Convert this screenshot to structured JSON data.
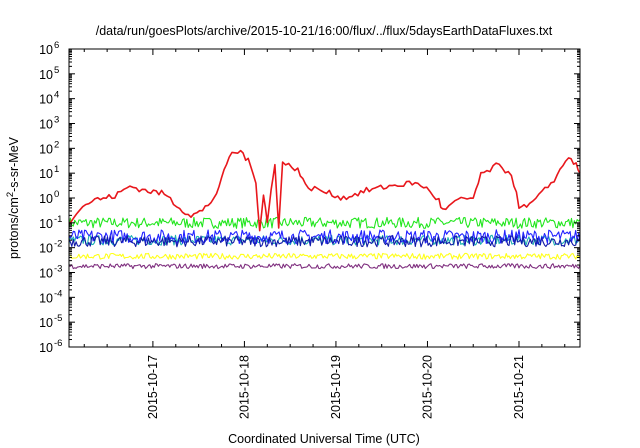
{
  "chart_data": {
    "type": "line",
    "title": "/data/run/goesPlots/archive/2015-10-21/16:00/flux/../flux/5daysEarthDataFluxes.txt",
    "xlabel": "Coordinated Universal Time (UTC)",
    "ylabel": "protons/cm²-s-sr-MeV",
    "yscale": "log",
    "ylim": [
      1e-06,
      1000000.0
    ],
    "xlim": [
      "2015-10-16T02:00",
      "2015-10-21T16:00"
    ],
    "y_ticks": [
      {
        "value": 1e-06,
        "base": "10",
        "exp": "-6"
      },
      {
        "value": 1e-05,
        "base": "10",
        "exp": "-5"
      },
      {
        "value": 0.0001,
        "base": "10",
        "exp": "-4"
      },
      {
        "value": 0.001,
        "base": "10",
        "exp": "-3"
      },
      {
        "value": 0.01,
        "base": "10",
        "exp": "-2"
      },
      {
        "value": 0.1,
        "base": "10",
        "exp": "-1"
      },
      {
        "value": 1,
        "base": "10",
        "exp": "0"
      },
      {
        "value": 10.0,
        "base": "10",
        "exp": "1"
      },
      {
        "value": 100.0,
        "base": "10",
        "exp": "2"
      },
      {
        "value": 1000.0,
        "base": "10",
        "exp": "3"
      },
      {
        "value": 10000.0,
        "base": "10",
        "exp": "4"
      },
      {
        "value": 100000.0,
        "base": "10",
        "exp": "5"
      },
      {
        "value": 1000000.0,
        "base": "10",
        "exp": "6"
      }
    ],
    "x_ticks": [
      {
        "t": "2015-10-17T00:00",
        "label": "2015-10-17"
      },
      {
        "t": "2015-10-18T00:00",
        "label": "2015-10-18"
      },
      {
        "t": "2015-10-19T00:00",
        "label": "2015-10-19"
      },
      {
        "t": "2015-10-20T00:00",
        "label": "2015-10-20"
      },
      {
        "t": "2015-10-21T00:00",
        "label": "2015-10-21"
      }
    ],
    "grid": false,
    "legend": "none",
    "series": [
      {
        "color": "#e8171c",
        "jitter": 0.12,
        "points": [
          [
            "2015-10-16T02:00",
            0.1
          ],
          [
            "2015-10-16T04:00",
            0.3
          ],
          [
            "2015-10-16T08:00",
            0.8
          ],
          [
            "2015-10-16T14:00",
            1.2
          ],
          [
            "2015-10-16T18:00",
            3.0
          ],
          [
            "2015-10-16T22:00",
            2.0
          ],
          [
            "2015-10-17T03:00",
            1.5
          ],
          [
            "2015-10-17T07:00",
            0.4
          ],
          [
            "2015-10-17T10:00",
            0.2
          ],
          [
            "2015-10-17T13:00",
            0.3
          ],
          [
            "2015-10-17T16:00",
            1.0
          ],
          [
            "2015-10-17T18:00",
            5.0
          ],
          [
            "2015-10-17T20:00",
            50
          ],
          [
            "2015-10-17T23:00",
            80
          ],
          [
            "2015-10-18T01:00",
            30
          ],
          [
            "2015-10-18T03:00",
            5.0
          ],
          [
            "2015-10-18T04:00",
            0.05
          ],
          [
            "2015-10-18T05:00",
            1.5
          ],
          [
            "2015-10-18T06:00",
            0.1
          ],
          [
            "2015-10-18T07:00",
            2.0
          ],
          [
            "2015-10-18T08:00",
            20
          ],
          [
            "2015-10-18T09:00",
            0.08
          ],
          [
            "2015-10-18T10:00",
            25
          ],
          [
            "2015-10-18T14:00",
            15
          ],
          [
            "2015-10-18T16:00",
            3.0
          ],
          [
            "2015-10-18T20:00",
            2.0
          ],
          [
            "2015-10-19T02:00",
            1.0
          ],
          [
            "2015-10-19T08:00",
            2.0
          ],
          [
            "2015-10-19T14:00",
            3.0
          ],
          [
            "2015-10-19T20:00",
            4.0
          ],
          [
            "2015-10-19T23:00",
            3.0
          ],
          [
            "2015-10-20T03:00",
            0.8
          ],
          [
            "2015-10-20T04:00",
            0.3
          ],
          [
            "2015-10-20T08:00",
            0.8
          ],
          [
            "2015-10-20T12:00",
            1.0
          ],
          [
            "2015-10-20T14:00",
            8.0
          ],
          [
            "2015-10-20T18:00",
            20
          ],
          [
            "2015-10-20T22:00",
            10
          ],
          [
            "2015-10-21T00:00",
            0.5
          ],
          [
            "2015-10-21T02:00",
            0.4
          ],
          [
            "2015-10-21T06:00",
            1.5
          ],
          [
            "2015-10-21T10:00",
            8.0
          ],
          [
            "2015-10-21T13:00",
            50
          ],
          [
            "2015-10-21T15:00",
            20
          ],
          [
            "2015-10-21T16:00",
            10
          ]
        ]
      },
      {
        "color": "#22e61e",
        "level": 0.1,
        "jitter": 0.22
      },
      {
        "color": "#1fb1b0",
        "level": 0.02,
        "jitter": 0.2
      },
      {
        "color": "#2222ff",
        "level": 0.028,
        "jitter": 0.28
      },
      {
        "color": "#111aa8",
        "level": 0.018,
        "jitter": 0.22
      },
      {
        "color": "#ffff1a",
        "level": 0.0045,
        "jitter": 0.12
      },
      {
        "color": "#7f2f7f",
        "level": 0.0018,
        "jitter": 0.1
      }
    ]
  }
}
